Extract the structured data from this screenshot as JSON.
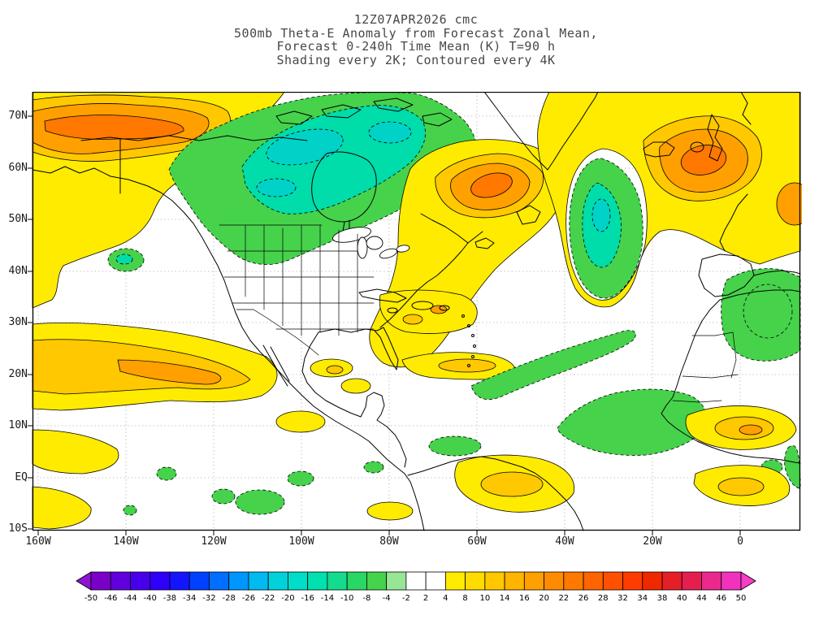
{
  "title": {
    "line1": "12Z07APR2026 cmc",
    "line2": "500mb Theta-E Anomaly from Forecast Zonal Mean,",
    "line3": "Forecast 0-240h Time Mean (K) T=90 h",
    "line4": "Shading every 2K; Contoured every 4K"
  },
  "axes": {
    "lat_labels": [
      "70N",
      "60N",
      "50N",
      "40N",
      "30N",
      "20N",
      "10N",
      "EQ",
      "10S"
    ],
    "lon_labels": [
      "160W",
      "140W",
      "120W",
      "100W",
      "80W",
      "60W",
      "40W",
      "20W",
      "0"
    ]
  },
  "palette": {
    "yellow": "#ffeb00",
    "gold": "#ffc800",
    "orange": "#ffa000",
    "deep_orange": "#ff7800",
    "green": "#46d24b",
    "cyan": "#00dcaa",
    "teal": "#00d2c8",
    "white": "#ffffff",
    "grid_gray": "#b4b4b4",
    "contour_black": "#000000"
  },
  "colorbar": {
    "labels": [
      -50,
      -46,
      -44,
      -40,
      -38,
      -34,
      -32,
      -28,
      -26,
      -22,
      -20,
      -16,
      -14,
      -10,
      -8,
      -4,
      -2,
      2,
      4,
      8,
      10,
      14,
      16,
      20,
      22,
      26,
      28,
      32,
      34,
      38,
      40,
      44,
      46,
      50
    ],
    "cell_colors": [
      "#7a00c8",
      "#6100dc",
      "#4800ec",
      "#2f00fa",
      "#1414ff",
      "#0041ff",
      "#006eff",
      "#0096ff",
      "#00baf0",
      "#00d2dc",
      "#00ddc8",
      "#00e1af",
      "#14dc8c",
      "#28d764",
      "#46d24b",
      "#96e696",
      "#ffffff",
      "#ffffff",
      "#ffeb00",
      "#ffdc00",
      "#ffc800",
      "#ffb400",
      "#ffa000",
      "#ff8c00",
      "#ff7800",
      "#ff6400",
      "#ff5000",
      "#ff3c00",
      "#f02800",
      "#e61e28",
      "#e61e50",
      "#eb288c",
      "#f032be"
    ],
    "arrow_left_color": "#8c14d2",
    "arrow_right_color": "#f73cc8"
  },
  "chart_data": {
    "type": "heatmap",
    "subtype": "filled-contour-map",
    "model": "cmc",
    "run": "12Z07APR2026",
    "title": "500mb Theta-E Anomaly from Forecast Zonal Mean",
    "forecast": "0-240h Time Mean (K) T=90 h",
    "units": "K",
    "shading_interval_K": 2,
    "contour_interval_K": 4,
    "x": {
      "label": "longitude",
      "ticks": [
        "160W",
        "140W",
        "120W",
        "100W",
        "80W",
        "60W",
        "40W",
        "20W",
        "0"
      ],
      "range": [
        "160W",
        "~12E"
      ]
    },
    "y": {
      "label": "latitude",
      "ticks": [
        "70N",
        "60N",
        "50N",
        "40N",
        "30N",
        "20N",
        "10N",
        "EQ",
        "10S"
      ],
      "range": [
        "10S",
        "~75N"
      ]
    },
    "colorbar_range": [
      -50,
      50
    ],
    "negative_contour_style": "dashed",
    "positive_contour_style": "solid",
    "anomaly_centers": [
      {
        "region": "Alaska / Bering / NW Canada",
        "lat": "60N-75N",
        "lon": "160W-120W",
        "sign": "positive",
        "approx_peak_K": 18
      },
      {
        "region": "Central Canada / Hudson Bay",
        "lat": "45N-72N",
        "lon": "130W-65W",
        "sign": "negative",
        "approx_peak_K": -14
      },
      {
        "region": "Quebec / Labrador",
        "lat": "48N-60N",
        "lon": "75W-50W",
        "sign": "positive",
        "approx_peak_K": 18
      },
      {
        "region": "Mid-Atlantic blob",
        "lat": "32N-58N",
        "lon": "45W-28W",
        "sign": "negative",
        "approx_peak_K": -14
      },
      {
        "region": "Northeast Atlantic / British Isles",
        "lat": "50N-65N",
        "lon": "25W-0",
        "sign": "positive",
        "approx_peak_K": 18
      },
      {
        "region": "Subtropical East Pacific band",
        "lat": "10N-28N",
        "lon": "160W-105W",
        "sign": "positive",
        "approx_peak_K": 12
      },
      {
        "region": "Northwest Africa",
        "lat": "22N-38N",
        "lon": "15W-10E",
        "sign": "negative",
        "approx_peak_K": -8
      },
      {
        "region": "Equatorial Atlantic",
        "lat": "0-12N",
        "lon": "40W-15W",
        "sign": "negative",
        "approx_peak_K": -6
      },
      {
        "region": "West Africa / Sahel",
        "lat": "5N-18N",
        "lon": "15W-10E",
        "sign": "positive",
        "approx_peak_K": 10
      },
      {
        "region": "Small spot west of US coast",
        "lat": "40N-44N",
        "lon": "142W-136W",
        "sign": "negative",
        "approx_peak_K": -8
      }
    ]
  }
}
